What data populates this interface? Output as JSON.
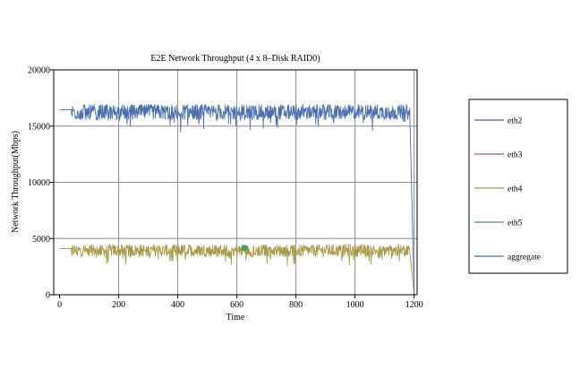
{
  "chart_data": {
    "type": "line",
    "title": "E2E Network Throughput (4 x 8–Disk RAID0)",
    "xlabel": "Time",
    "ylabel": "Network Throughput(Mbps)",
    "xlim": [
      -20,
      1210
    ],
    "ylim": [
      0,
      20000
    ],
    "xticks": [
      0,
      200,
      400,
      600,
      800,
      1000,
      1200
    ],
    "yticks": [
      0,
      5000,
      10000,
      15000,
      20000
    ],
    "grid": true,
    "legend_position": "right",
    "series": [
      {
        "name": "eth2",
        "color": "#4a5fa8",
        "legend_only": true
      },
      {
        "name": "eth3",
        "color": "#a0568c",
        "legend_only": true
      },
      {
        "name": "eth4",
        "color": "#a99a49",
        "baseline": 4100,
        "ramp_start": 40,
        "plateau_end": 1185,
        "end_x": 1200,
        "end_y": 0
      },
      {
        "name": "eth5",
        "color": "#3d9e6a",
        "marker_x": 625,
        "marker_y": 4150
      },
      {
        "name": "aggregate",
        "color": "#4a6fb3",
        "baseline": 16450,
        "ramp_start": 40,
        "plateau_end": 1185,
        "end_x": 1200,
        "end_y": 0
      }
    ]
  }
}
